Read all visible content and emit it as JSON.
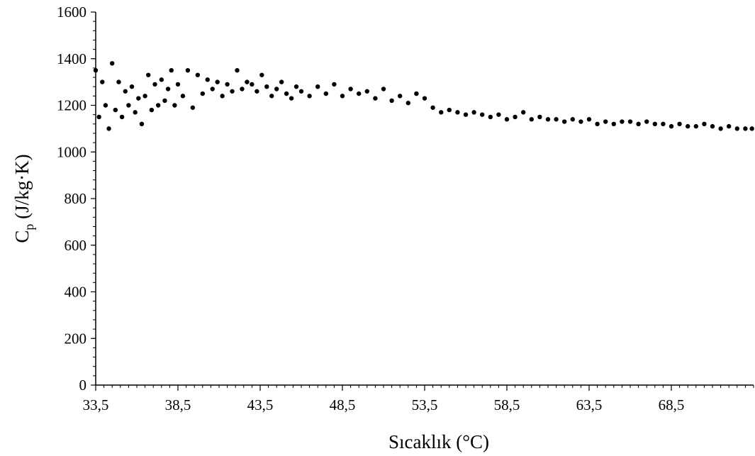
{
  "chart_data": {
    "type": "scatter",
    "xlabel": "Sıcaklık (°C)",
    "ylabel_main": "C",
    "ylabel_sub": "p",
    "ylabel_rest": " (J/kg·K)",
    "xlim": [
      33.5,
      73.5
    ],
    "ylim": [
      0,
      1600
    ],
    "x_ticks": [
      33.5,
      38.5,
      43.5,
      48.5,
      53.5,
      58.5,
      63.5,
      68.5
    ],
    "x_tick_labels": [
      "33,5",
      "38,5",
      "43,5",
      "48,5",
      "53,5",
      "58,5",
      "63,5",
      "68,5"
    ],
    "y_ticks": [
      0,
      200,
      400,
      600,
      800,
      1000,
      1200,
      1400,
      1600
    ],
    "y_tick_labels": [
      "0",
      "200",
      "400",
      "600",
      "800",
      "1000",
      "1200",
      "1400",
      "1600"
    ],
    "grid": false,
    "marker_color": "#000000",
    "series": [
      {
        "x": [
          33.5,
          33.7,
          33.9,
          34.1,
          34.3,
          34.5,
          34.7,
          34.9,
          35.1,
          35.3,
          35.5,
          35.7,
          35.9,
          36.1,
          36.3,
          36.5,
          36.7,
          36.9,
          37.1,
          37.3,
          37.5,
          37.7,
          37.9,
          38.1,
          38.3,
          38.5,
          38.8,
          39.1,
          39.4,
          39.7,
          40.0,
          40.3,
          40.6,
          40.9,
          41.2,
          41.5,
          41.8,
          42.1,
          42.4,
          42.7,
          43.0,
          43.3,
          43.6,
          43.9,
          44.2,
          44.5,
          44.8,
          45.1,
          45.4,
          45.7,
          46.0,
          46.5,
          47.0,
          47.5,
          48.0,
          48.5,
          49.0,
          49.5,
          50.0,
          50.5,
          51.0,
          51.5,
          52.0,
          52.5,
          53.0,
          53.5,
          54.0,
          54.5,
          55.0,
          55.5,
          56.0,
          56.5,
          57.0,
          57.5,
          58.0,
          58.5,
          59.0,
          59.5,
          60.0,
          60.5,
          61.0,
          61.5,
          62.0,
          62.5,
          63.0,
          63.5,
          64.0,
          64.5,
          65.0,
          65.5,
          66.0,
          66.5,
          67.0,
          67.5,
          68.0,
          68.5,
          69.0,
          69.5,
          70.0,
          70.5,
          71.0,
          71.5,
          72.0,
          72.5,
          73.0,
          73.4
        ],
        "y": [
          1350,
          1150,
          1300,
          1200,
          1100,
          1380,
          1180,
          1300,
          1150,
          1260,
          1200,
          1280,
          1170,
          1230,
          1120,
          1240,
          1330,
          1180,
          1290,
          1200,
          1310,
          1220,
          1270,
          1350,
          1200,
          1290,
          1240,
          1350,
          1190,
          1330,
          1250,
          1310,
          1270,
          1300,
          1240,
          1290,
          1260,
          1350,
          1270,
          1300,
          1290,
          1260,
          1330,
          1280,
          1240,
          1270,
          1300,
          1250,
          1230,
          1280,
          1260,
          1240,
          1280,
          1250,
          1290,
          1240,
          1270,
          1250,
          1260,
          1230,
          1270,
          1220,
          1240,
          1210,
          1250,
          1230,
          1190,
          1170,
          1180,
          1170,
          1160,
          1170,
          1160,
          1150,
          1160,
          1140,
          1150,
          1170,
          1140,
          1150,
          1140,
          1140,
          1130,
          1140,
          1130,
          1140,
          1120,
          1130,
          1120,
          1130,
          1130,
          1120,
          1130,
          1120,
          1120,
          1110,
          1120,
          1110,
          1110,
          1120,
          1110,
          1100,
          1110,
          1100,
          1100,
          1100
        ]
      }
    ]
  }
}
